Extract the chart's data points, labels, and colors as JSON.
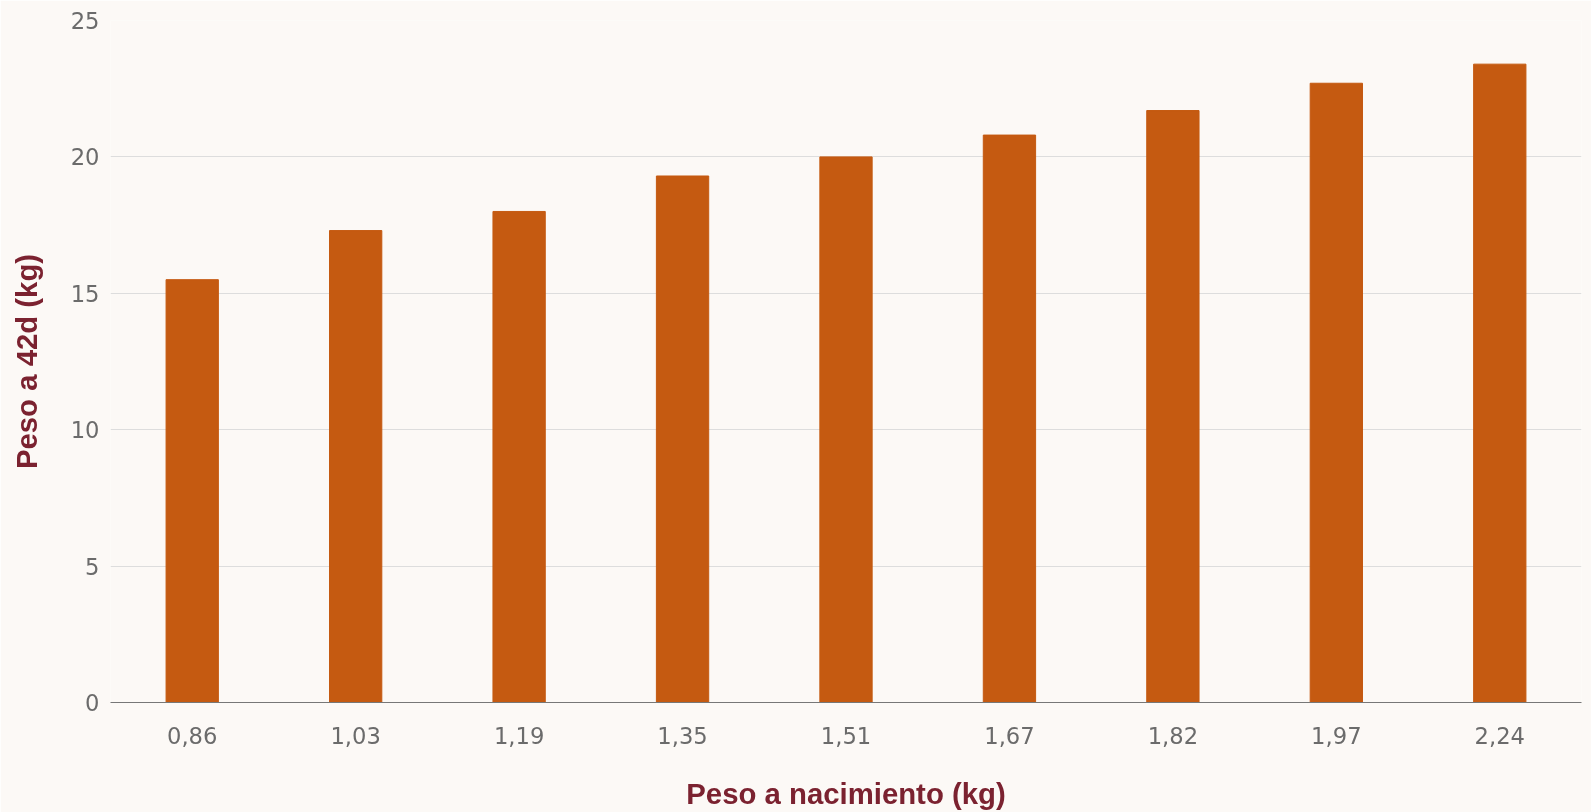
{
  "chart_data": {
    "type": "bar",
    "xlabel": "Peso a nacimiento (kg)",
    "ylabel": "Peso a 42d (kg)",
    "categories": [
      "0,86",
      "1,03",
      "1,19",
      "1,35",
      "1,51",
      "1,67",
      "1,82",
      "1,97",
      "2,24"
    ],
    "values": [
      15.5,
      17.3,
      18.0,
      19.3,
      20.0,
      20.8,
      21.7,
      22.7,
      23.4
    ],
    "color": "#c55a11",
    "ylim": [
      0,
      25
    ],
    "yticks": [
      0,
      5,
      10,
      15,
      20,
      25
    ],
    "grid": "y"
  }
}
